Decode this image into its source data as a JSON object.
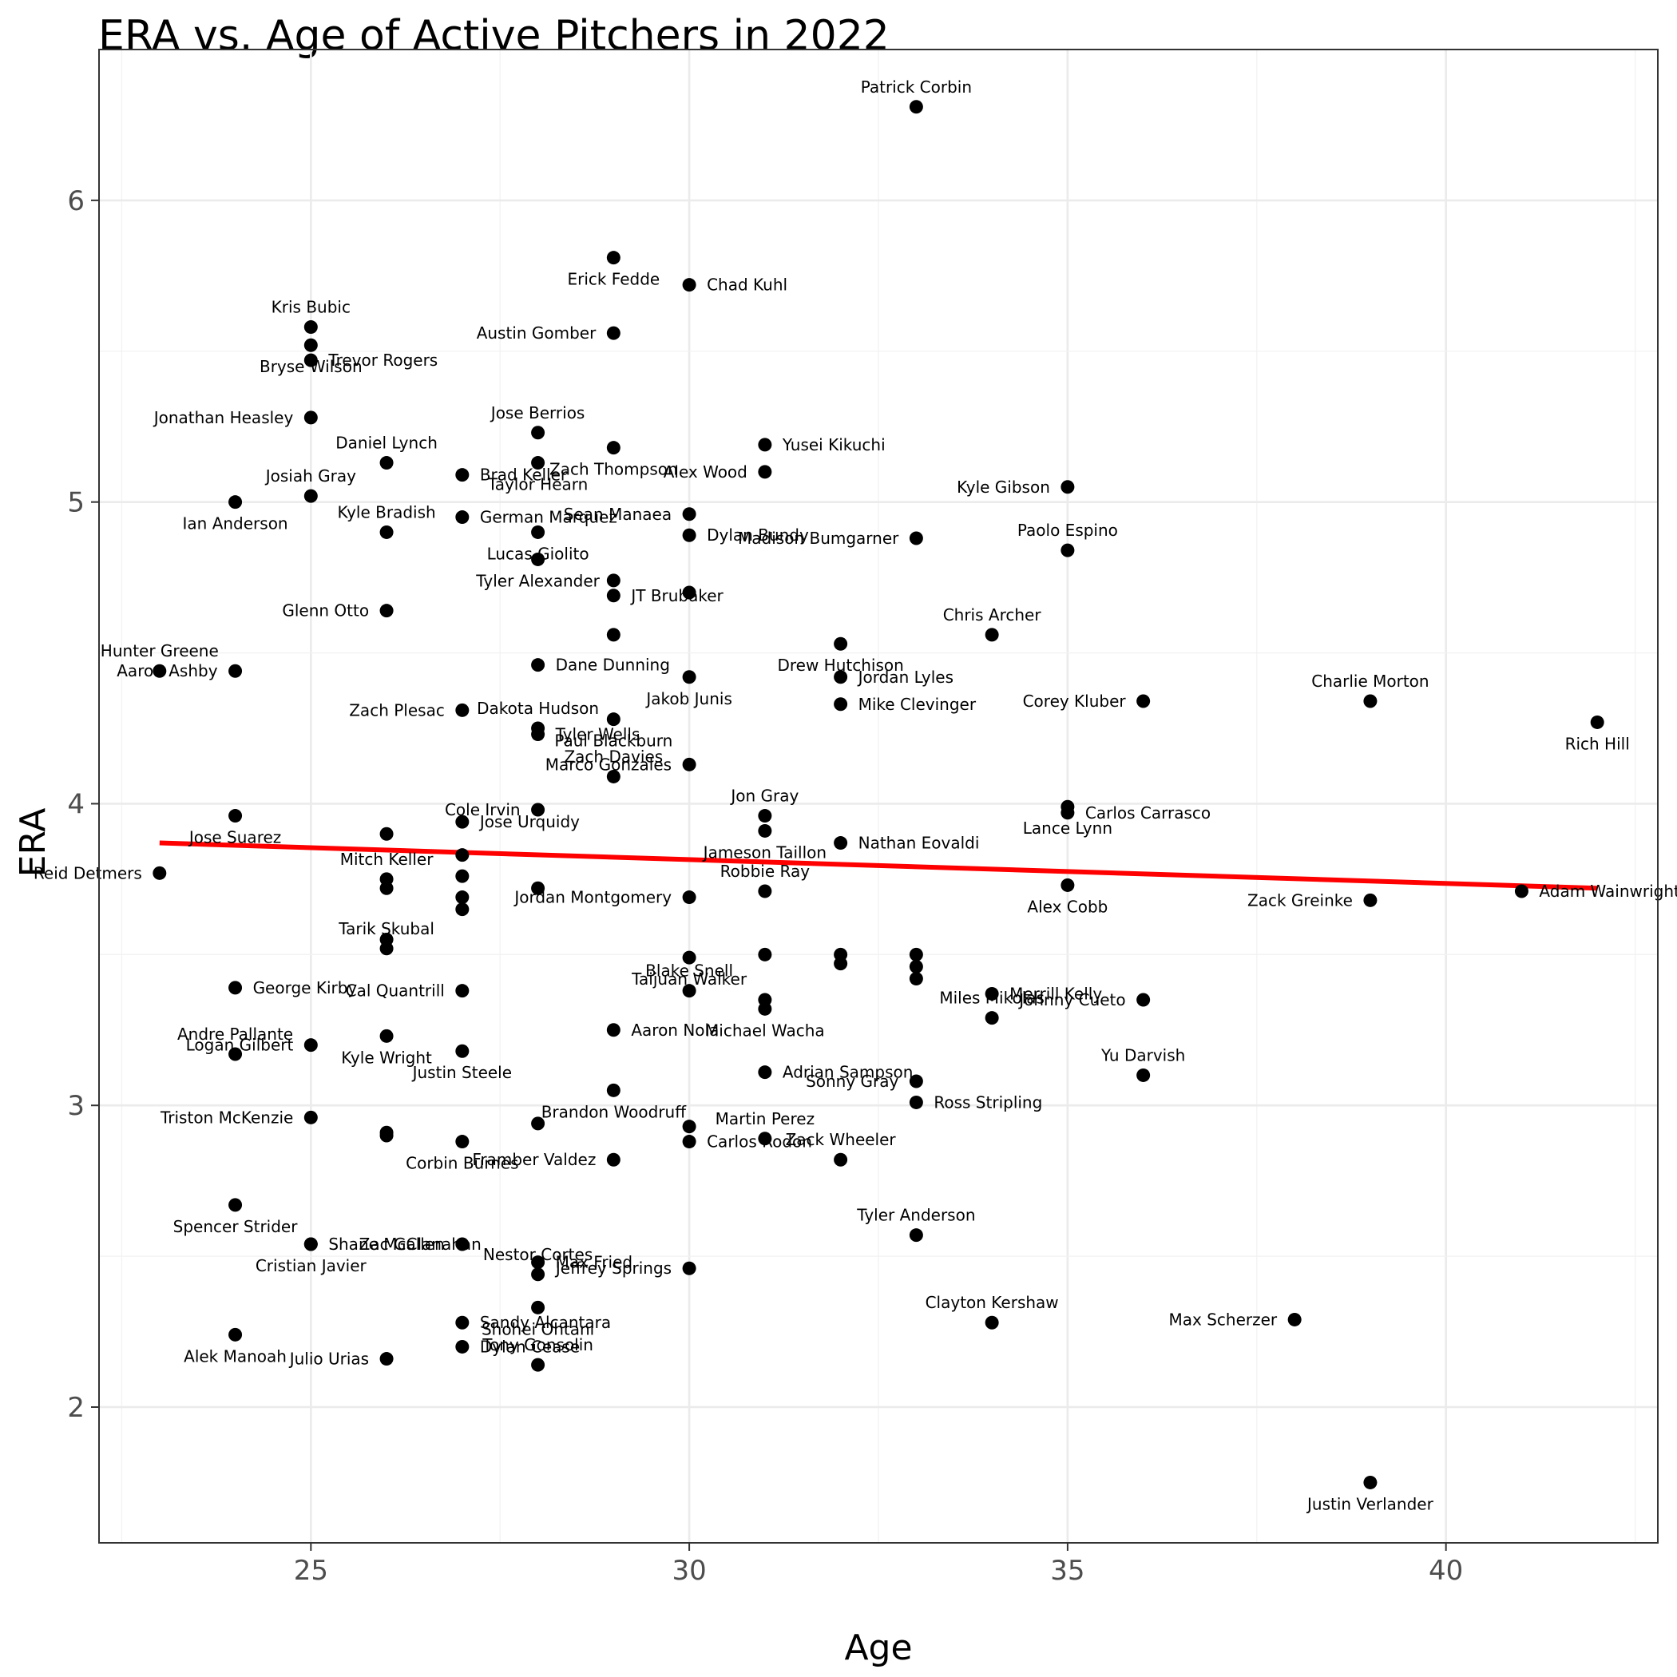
{
  "chart_data": {
    "type": "scatter",
    "title": "ERA vs. Age of Active Pitchers in 2022",
    "xlabel": "Age",
    "ylabel": "ERA",
    "xlim": [
      22.2,
      42.8
    ],
    "ylim": [
      1.55,
      6.5
    ],
    "x_ticks": [
      25,
      30,
      35,
      40
    ],
    "y_ticks": [
      2,
      3,
      4,
      5,
      6
    ],
    "grid": true,
    "trendline": {
      "type": "linear",
      "x": [
        23,
        42
      ],
      "y": [
        3.87,
        3.72
      ],
      "color": "#ff0000"
    },
    "point_color": "#000000",
    "points": [
      {
        "name": "Patrick Corbin",
        "x": 33,
        "y": 6.31
      },
      {
        "name": "Erick Fedde",
        "x": 29,
        "y": 5.81
      },
      {
        "name": "Chad Kuhl",
        "x": 30,
        "y": 5.72
      },
      {
        "name": "Austin Gomber",
        "x": 29,
        "y": 5.56
      },
      {
        "name": "Kris Bubic",
        "x": 25,
        "y": 5.58
      },
      {
        "name": "Bryse Wilson",
        "x": 25,
        "y": 5.52
      },
      {
        "name": "Trevor Rogers",
        "x": 25,
        "y": 5.47
      },
      {
        "name": "Jonathan Heasley",
        "x": 25,
        "y": 5.28
      },
      {
        "name": "Jose Berrios",
        "x": 28,
        "y": 5.23
      },
      {
        "name": "Zach Thompson",
        "x": 29,
        "y": 5.18
      },
      {
        "name": "Yusei Kikuchi",
        "x": 31,
        "y": 5.19
      },
      {
        "name": "Alex Wood",
        "x": 31,
        "y": 5.1
      },
      {
        "name": "Daniel Lynch",
        "x": 26,
        "y": 5.13
      },
      {
        "name": "Taylor Hearn",
        "x": 28,
        "y": 5.13
      },
      {
        "name": "Brad Keller",
        "x": 27,
        "y": 5.09
      },
      {
        "name": "Kyle Gibson",
        "x": 35,
        "y": 5.05
      },
      {
        "name": "Josiah Gray",
        "x": 25,
        "y": 5.02
      },
      {
        "name": "Ian Anderson",
        "x": 24,
        "y": 5.0
      },
      {
        "name": "German Marquez",
        "x": 27,
        "y": 4.95
      },
      {
        "name": "Sean Manaea",
        "x": 30,
        "y": 4.96
      },
      {
        "name": "Kyle Bradish",
        "x": 26,
        "y": 4.9
      },
      {
        "name": "Lucas Giolito",
        "x": 28,
        "y": 4.9
      },
      {
        "name": "Dylan Bundy",
        "x": 30,
        "y": 4.89
      },
      {
        "name": "Madison Bumgarner",
        "x": 33,
        "y": 4.88
      },
      {
        "name": "Paolo Espino",
        "x": 35,
        "y": 4.84
      },
      {
        "name": "Tyler Alexander",
        "x": 28,
        "y": 4.81
      },
      {
        "name": "JT Brubaker",
        "x": 29,
        "y": 4.69
      },
      {
        "name": "Glenn Otto",
        "x": 26,
        "y": 4.64
      },
      {
        "name": "Chris Archer",
        "x": 34,
        "y": 4.56
      },
      {
        "name": "Drew Hutchison",
        "x": 32,
        "y": 4.53
      },
      {
        "name": "Dane Dunning",
        "x": 28,
        "y": 4.46
      },
      {
        "name": "Aaron Ashby",
        "x": 24,
        "y": 4.44
      },
      {
        "name": "Hunter Greene",
        "x": 23,
        "y": 4.44
      },
      {
        "name": "Jakob Junis",
        "x": 30,
        "y": 4.42
      },
      {
        "name": "Jordan Lyles",
        "x": 32,
        "y": 4.42
      },
      {
        "name": "Zach Plesac",
        "x": 27,
        "y": 4.31
      },
      {
        "name": "Dakota Hudson",
        "x": 28,
        "y": 4.25
      },
      {
        "name": "Paul Blackburn",
        "x": 29,
        "y": 4.28
      },
      {
        "name": "Mike Clevinger",
        "x": 32,
        "y": 4.33
      },
      {
        "name": "Corey Kluber",
        "x": 36,
        "y": 4.34
      },
      {
        "name": "Charlie Morton",
        "x": 39,
        "y": 4.34
      },
      {
        "name": "Rich Hill",
        "x": 42,
        "y": 4.27
      },
      {
        "name": "Tyler Wells",
        "x": 28,
        "y": 4.23
      },
      {
        "name": "Marco Gonzales",
        "x": 30,
        "y": 4.13
      },
      {
        "name": "Zach Davies",
        "x": 29,
        "y": 4.09
      },
      {
        "name": "Jose Suarez",
        "x": 24,
        "y": 3.96
      },
      {
        "name": "Jose Urquidy",
        "x": 27,
        "y": 3.94
      },
      {
        "name": "Cole Irvin",
        "x": 28,
        "y": 3.98
      },
      {
        "name": "Jon Gray",
        "x": 31,
        "y": 3.96
      },
      {
        "name": "Lance Lynn",
        "x": 35,
        "y": 3.99
      },
      {
        "name": "Carlos Carrasco",
        "x": 35,
        "y": 3.97
      },
      {
        "name": "Reid Detmers",
        "x": 23,
        "y": 3.77
      },
      {
        "name": "Mitch Keller",
        "x": 26,
        "y": 3.75
      },
      {
        "name": "Jameson Taillon",
        "x": 31,
        "y": 3.91
      },
      {
        "name": "Nathan Eovaldi",
        "x": 32,
        "y": 3.87
      },
      {
        "name": "Jordan Montgomery",
        "x": 30,
        "y": 3.69
      },
      {
        "name": "Robbie Ray",
        "x": 31,
        "y": 3.71
      },
      {
        "name": "Alex Cobb",
        "x": 35,
        "y": 3.73
      },
      {
        "name": "Adam Wainwright",
        "x": 41,
        "y": 3.71
      },
      {
        "name": "Zack Greinke",
        "x": 39,
        "y": 3.68
      },
      {
        "name": "Tarik Skubal",
        "x": 26,
        "y": 3.52
      },
      {
        "name": "Taijuan Walker",
        "x": 30,
        "y": 3.49
      },
      {
        "name": "George Kirby",
        "x": 24,
        "y": 3.39
      },
      {
        "name": "Cal Quantrill",
        "x": 27,
        "y": 3.38
      },
      {
        "name": "Blake Snell",
        "x": 30,
        "y": 3.38
      },
      {
        "name": "Michael Wacha",
        "x": 31,
        "y": 3.32
      },
      {
        "name": "Merrill Kelly",
        "x": 34,
        "y": 3.37
      },
      {
        "name": "Johnny Cueto",
        "x": 36,
        "y": 3.35
      },
      {
        "name": "Miles Mikolas",
        "x": 34,
        "y": 3.29
      },
      {
        "name": "Kyle Wright",
        "x": 26,
        "y": 3.23
      },
      {
        "name": "Aaron Nola",
        "x": 29,
        "y": 3.25
      },
      {
        "name": "Logan Gilbert",
        "x": 25,
        "y": 3.2
      },
      {
        "name": "Andre Pallante",
        "x": 24,
        "y": 3.17
      },
      {
        "name": "Justin Steele",
        "x": 27,
        "y": 3.18
      },
      {
        "name": "Adrian Sampson",
        "x": 31,
        "y": 3.11
      },
      {
        "name": "Sonny Gray",
        "x": 33,
        "y": 3.08
      },
      {
        "name": "Yu Darvish",
        "x": 36,
        "y": 3.1
      },
      {
        "name": "Brandon Woodruff",
        "x": 29,
        "y": 3.05
      },
      {
        "name": "Ross Stripling",
        "x": 33,
        "y": 3.01
      },
      {
        "name": "Triston McKenzie",
        "x": 25,
        "y": 2.96
      },
      {
        "name": "Martin Perez",
        "x": 31,
        "y": 2.89
      },
      {
        "name": "Corbin Burnes",
        "x": 27,
        "y": 2.88
      },
      {
        "name": "Carlos Rodon",
        "x": 30,
        "y": 2.88
      },
      {
        "name": "Framber Valdez",
        "x": 29,
        "y": 2.82
      },
      {
        "name": "Zack Wheeler",
        "x": 32,
        "y": 2.82
      },
      {
        "name": "Spencer Strider",
        "x": 24,
        "y": 2.67
      },
      {
        "name": "Shane McClanahan",
        "x": 25,
        "y": 2.54
      },
      {
        "name": "Zac Gallen",
        "x": 27,
        "y": 2.54
      },
      {
        "name": "Tyler Anderson",
        "x": 33,
        "y": 2.57
      },
      {
        "name": "Cristian Javier",
        "x": 25,
        "y": 2.54
      },
      {
        "name": "Max Fried",
        "x": 28,
        "y": 2.48
      },
      {
        "name": "Jeffrey Springs",
        "x": 30,
        "y": 2.46
      },
      {
        "name": "Nestor Cortes",
        "x": 28,
        "y": 2.44
      },
      {
        "name": "Shohei Ohtani",
        "x": 28,
        "y": 2.33
      },
      {
        "name": "Sandy Alcantara",
        "x": 27,
        "y": 2.28
      },
      {
        "name": "Max Scherzer",
        "x": 38,
        "y": 2.29
      },
      {
        "name": "Clayton Kershaw",
        "x": 34,
        "y": 2.28
      },
      {
        "name": "Alek Manoah",
        "x": 24,
        "y": 2.24
      },
      {
        "name": "Dylan Cease",
        "x": 27,
        "y": 2.2
      },
      {
        "name": "Julio Urias",
        "x": 26,
        "y": 2.16
      },
      {
        "name": "Tony Gonsolin",
        "x": 28,
        "y": 2.14
      },
      {
        "name": "Justin Verlander",
        "x": 39,
        "y": 1.75
      }
    ],
    "unlabeled_points": [
      {
        "x": 27,
        "y": 3.83
      },
      {
        "x": 27,
        "y": 3.76
      },
      {
        "x": 27,
        "y": 3.69
      },
      {
        "x": 27,
        "y": 3.65
      },
      {
        "x": 26,
        "y": 3.72
      },
      {
        "x": 26,
        "y": 3.9
      },
      {
        "x": 26,
        "y": 3.55
      },
      {
        "x": 26,
        "y": 2.91
      },
      {
        "x": 26,
        "y": 2.9
      },
      {
        "x": 28,
        "y": 3.72
      },
      {
        "x": 28,
        "y": 2.94
      },
      {
        "x": 29,
        "y": 4.74
      },
      {
        "x": 29,
        "y": 4.56
      },
      {
        "x": 30,
        "y": 4.7
      },
      {
        "x": 30,
        "y": 2.93
      },
      {
        "x": 31,
        "y": 3.5
      },
      {
        "x": 31,
        "y": 3.35
      },
      {
        "x": 32,
        "y": 3.5
      },
      {
        "x": 32,
        "y": 3.47
      },
      {
        "x": 33,
        "y": 3.5
      },
      {
        "x": 33,
        "y": 3.46
      },
      {
        "x": 33,
        "y": 3.42
      }
    ]
  }
}
